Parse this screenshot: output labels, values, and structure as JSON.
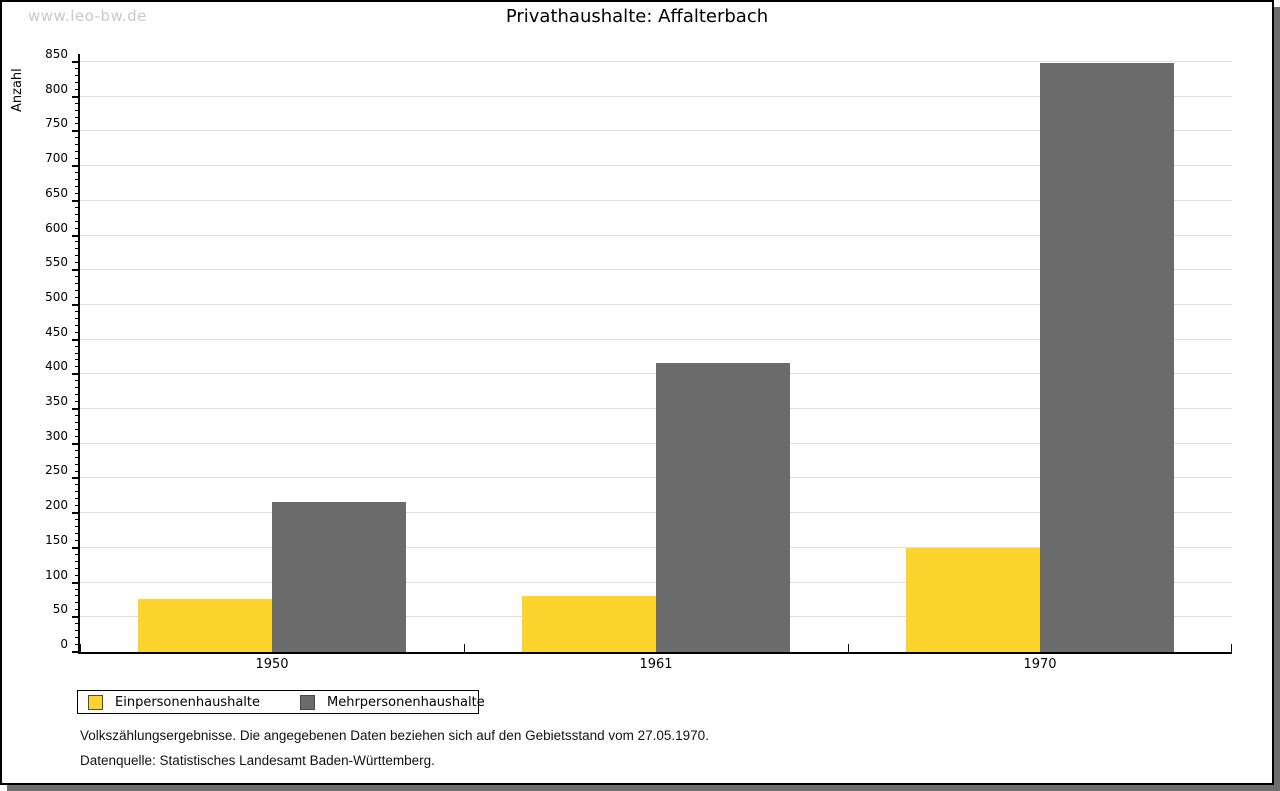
{
  "watermark": "www.leo-bw.de",
  "chart_data": {
    "type": "bar",
    "title": "Privathaushalte: Affalterbach",
    "xlabel": "",
    "ylabel": "Anzahl",
    "categories": [
      "1950",
      "1961",
      "1970"
    ],
    "series": [
      {
        "name": "Einpersonenhaushalte",
        "color": "#FCD42D",
        "values": [
          77,
          81,
          150
        ]
      },
      {
        "name": "Mehrpersonenhaushalte",
        "color": "#6B6B6B",
        "values": [
          216,
          417,
          849
        ]
      }
    ],
    "ylim": [
      0,
      850
    ],
    "ytick_step": 50,
    "ytick_minor_step": 10,
    "grid": "horizontal-major",
    "legend_position": "bottom-left"
  },
  "footer": {
    "line1": "Volkszählungsergebnisse. Die angegebenen Daten beziehen sich auf den Gebietsstand vom 27.05.1970.",
    "line2": "Datenquelle: Statistisches Landesamt Baden-Württemberg."
  },
  "style_colors": {
    "gridline": "#E0E0E0",
    "axis": "#000000",
    "watermark": "#C9C9C9",
    "shadow": "#6E6E6E"
  }
}
